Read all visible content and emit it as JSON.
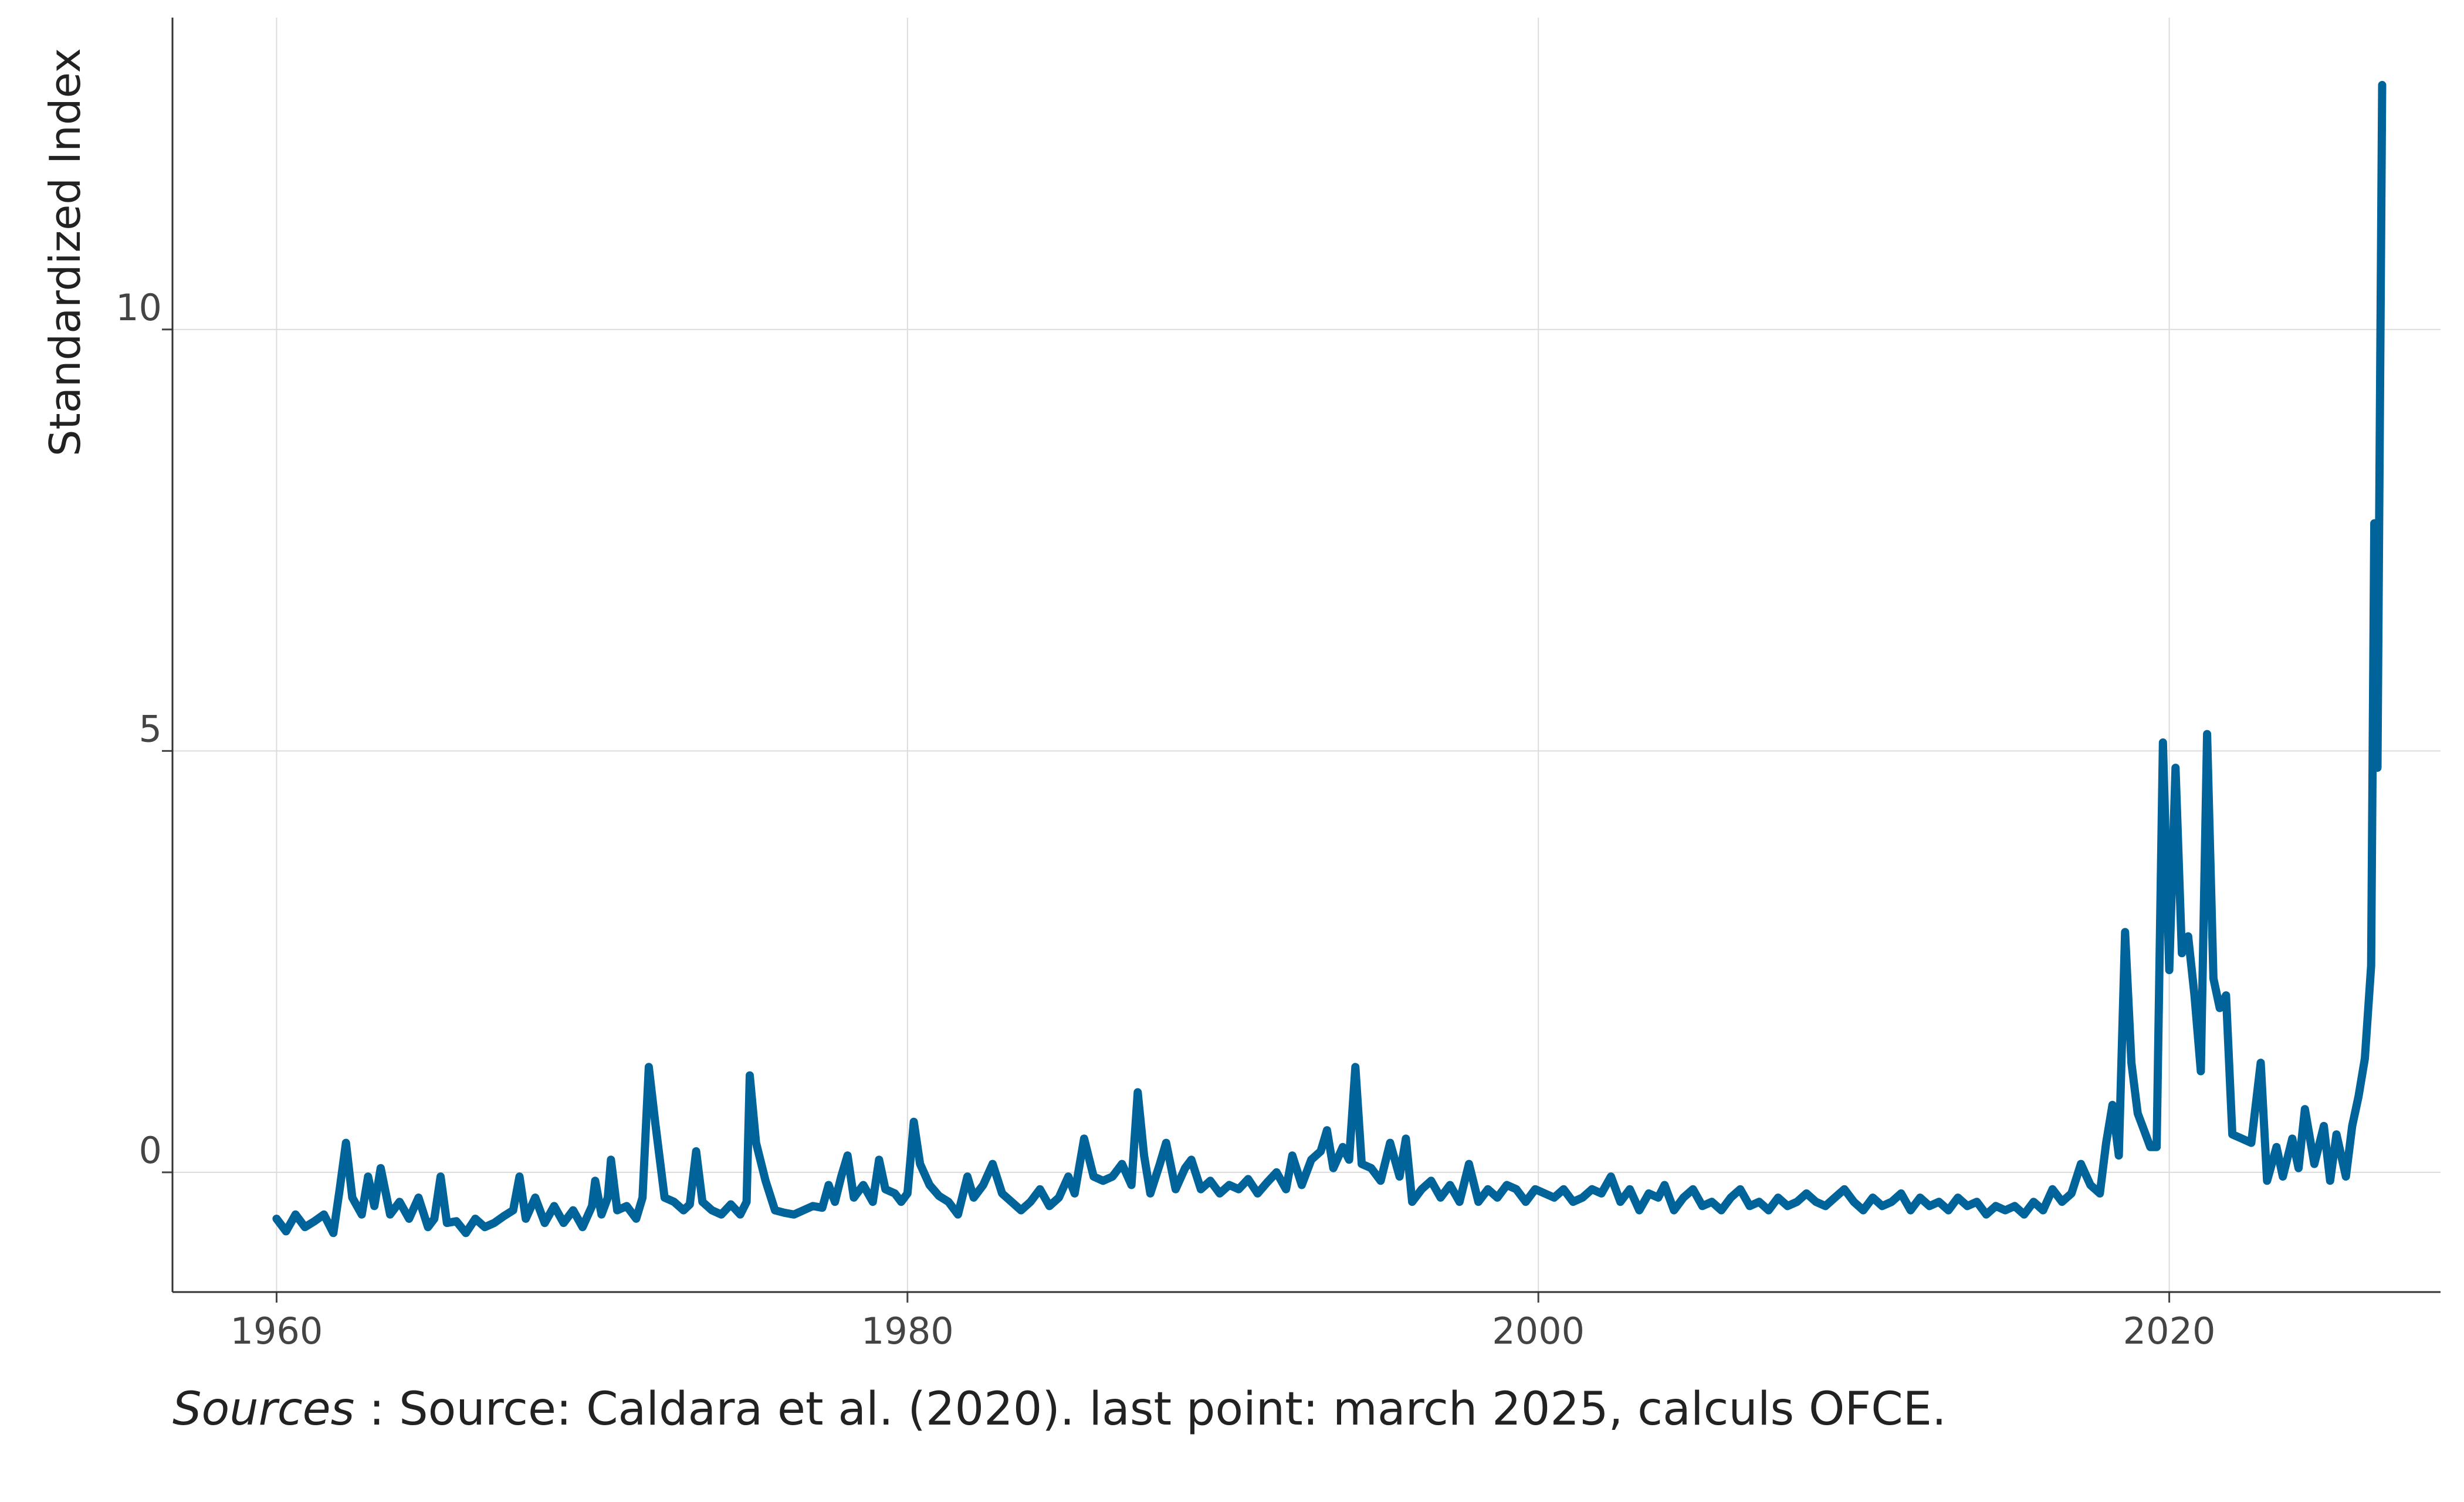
{
  "chart_data": {
    "type": "line",
    "ylabel": "Standardized Index",
    "xlabel": "",
    "x_range": [
      1956.7,
      2028.6
    ],
    "y_range": [
      -1.42,
      13.7
    ],
    "x_ticks": [
      1960,
      1980,
      2000,
      2020
    ],
    "y_ticks": [
      0,
      5,
      10
    ],
    "grid": true,
    "legend": "none",
    "line_color": "#00639a",
    "series": [
      {
        "points": [
          [
            1960.0,
            -0.55
          ],
          [
            1960.3,
            -0.7
          ],
          [
            1960.6,
            -0.5
          ],
          [
            1960.9,
            -0.65
          ],
          [
            1961.2,
            -0.58
          ],
          [
            1961.5,
            -0.5
          ],
          [
            1961.8,
            -0.72
          ],
          [
            1962.0,
            -0.2
          ],
          [
            1962.2,
            0.35
          ],
          [
            1962.4,
            -0.3
          ],
          [
            1962.7,
            -0.5
          ],
          [
            1962.9,
            -0.05
          ],
          [
            1963.1,
            -0.4
          ],
          [
            1963.3,
            0.05
          ],
          [
            1963.6,
            -0.5
          ],
          [
            1963.9,
            -0.35
          ],
          [
            1964.2,
            -0.55
          ],
          [
            1964.5,
            -0.3
          ],
          [
            1964.8,
            -0.65
          ],
          [
            1965.0,
            -0.55
          ],
          [
            1965.2,
            -0.05
          ],
          [
            1965.4,
            -0.6
          ],
          [
            1965.7,
            -0.58
          ],
          [
            1966.0,
            -0.72
          ],
          [
            1966.3,
            -0.55
          ],
          [
            1966.6,
            -0.65
          ],
          [
            1966.9,
            -0.6
          ],
          [
            1967.2,
            -0.52
          ],
          [
            1967.5,
            -0.45
          ],
          [
            1967.7,
            -0.05
          ],
          [
            1967.9,
            -0.55
          ],
          [
            1968.2,
            -0.3
          ],
          [
            1968.5,
            -0.6
          ],
          [
            1968.8,
            -0.4
          ],
          [
            1969.1,
            -0.6
          ],
          [
            1969.4,
            -0.45
          ],
          [
            1969.7,
            -0.65
          ],
          [
            1970.0,
            -0.4
          ],
          [
            1970.1,
            -0.1
          ],
          [
            1970.3,
            -0.5
          ],
          [
            1970.5,
            -0.3
          ],
          [
            1970.6,
            0.15
          ],
          [
            1970.8,
            -0.45
          ],
          [
            1971.1,
            -0.4
          ],
          [
            1971.4,
            -0.55
          ],
          [
            1971.6,
            -0.3
          ],
          [
            1971.8,
            1.25
          ],
          [
            1972.0,
            0.6
          ],
          [
            1972.3,
            -0.3
          ],
          [
            1972.6,
            -0.35
          ],
          [
            1972.9,
            -0.45
          ],
          [
            1973.1,
            -0.38
          ],
          [
            1973.3,
            0.25
          ],
          [
            1973.5,
            -0.35
          ],
          [
            1973.8,
            -0.45
          ],
          [
            1974.1,
            -0.5
          ],
          [
            1974.4,
            -0.38
          ],
          [
            1974.7,
            -0.5
          ],
          [
            1974.9,
            -0.35
          ],
          [
            1975.0,
            1.15
          ],
          [
            1975.2,
            0.35
          ],
          [
            1975.5,
            -0.1
          ],
          [
            1975.8,
            -0.45
          ],
          [
            1976.1,
            -0.48
          ],
          [
            1976.4,
            -0.5
          ],
          [
            1976.7,
            -0.45
          ],
          [
            1977.0,
            -0.4
          ],
          [
            1977.3,
            -0.42
          ],
          [
            1977.5,
            -0.15
          ],
          [
            1977.7,
            -0.35
          ],
          [
            1977.9,
            -0.05
          ],
          [
            1978.1,
            0.2
          ],
          [
            1978.3,
            -0.3
          ],
          [
            1978.6,
            -0.15
          ],
          [
            1978.9,
            -0.35
          ],
          [
            1979.1,
            0.15
          ],
          [
            1979.3,
            -0.2
          ],
          [
            1979.6,
            -0.25
          ],
          [
            1979.8,
            -0.35
          ],
          [
            1980.0,
            -0.25
          ],
          [
            1980.2,
            0.6
          ],
          [
            1980.4,
            0.1
          ],
          [
            1980.7,
            -0.15
          ],
          [
            1981.0,
            -0.28
          ],
          [
            1981.3,
            -0.35
          ],
          [
            1981.6,
            -0.5
          ],
          [
            1981.9,
            -0.05
          ],
          [
            1982.1,
            -0.3
          ],
          [
            1982.4,
            -0.15
          ],
          [
            1982.7,
            0.1
          ],
          [
            1983.0,
            -0.25
          ],
          [
            1983.3,
            -0.35
          ],
          [
            1983.6,
            -0.45
          ],
          [
            1983.9,
            -0.35
          ],
          [
            1984.2,
            -0.2
          ],
          [
            1984.5,
            -0.4
          ],
          [
            1984.8,
            -0.3
          ],
          [
            1985.1,
            -0.05
          ],
          [
            1985.3,
            -0.25
          ],
          [
            1985.6,
            0.4
          ],
          [
            1985.9,
            -0.05
          ],
          [
            1986.2,
            -0.1
          ],
          [
            1986.5,
            -0.05
          ],
          [
            1986.8,
            0.1
          ],
          [
            1987.1,
            -0.15
          ],
          [
            1987.3,
            0.95
          ],
          [
            1987.5,
            0.2
          ],
          [
            1987.7,
            -0.25
          ],
          [
            1988.0,
            0.1
          ],
          [
            1988.2,
            0.35
          ],
          [
            1988.5,
            -0.2
          ],
          [
            1988.8,
            0.05
          ],
          [
            1989.0,
            0.15
          ],
          [
            1989.3,
            -0.2
          ],
          [
            1989.6,
            -0.1
          ],
          [
            1989.9,
            -0.25
          ],
          [
            1990.2,
            -0.15
          ],
          [
            1990.5,
            -0.2
          ],
          [
            1990.8,
            -0.08
          ],
          [
            1991.1,
            -0.25
          ],
          [
            1991.4,
            -0.12
          ],
          [
            1991.7,
            0.0
          ],
          [
            1992.0,
            -0.2
          ],
          [
            1992.2,
            0.2
          ],
          [
            1992.5,
            -0.15
          ],
          [
            1992.8,
            0.15
          ],
          [
            1993.1,
            0.25
          ],
          [
            1993.3,
            0.5
          ],
          [
            1993.5,
            0.05
          ],
          [
            1993.8,
            0.3
          ],
          [
            1994.0,
            0.15
          ],
          [
            1994.2,
            1.25
          ],
          [
            1994.4,
            0.1
          ],
          [
            1994.7,
            0.05
          ],
          [
            1995.0,
            -0.1
          ],
          [
            1995.3,
            0.35
          ],
          [
            1995.6,
            -0.05
          ],
          [
            1995.8,
            0.4
          ],
          [
            1996.0,
            -0.35
          ],
          [
            1996.3,
            -0.2
          ],
          [
            1996.6,
            -0.1
          ],
          [
            1996.9,
            -0.3
          ],
          [
            1997.2,
            -0.15
          ],
          [
            1997.5,
            -0.35
          ],
          [
            1997.8,
            0.1
          ],
          [
            1998.1,
            -0.35
          ],
          [
            1998.4,
            -0.2
          ],
          [
            1998.7,
            -0.3
          ],
          [
            1999.0,
            -0.15
          ],
          [
            1999.3,
            -0.2
          ],
          [
            1999.6,
            -0.35
          ],
          [
            1999.9,
            -0.2
          ],
          [
            2000.2,
            -0.25
          ],
          [
            2000.5,
            -0.3
          ],
          [
            2000.8,
            -0.2
          ],
          [
            2001.1,
            -0.35
          ],
          [
            2001.4,
            -0.3
          ],
          [
            2001.7,
            -0.2
          ],
          [
            2002.0,
            -0.25
          ],
          [
            2002.3,
            -0.05
          ],
          [
            2002.6,
            -0.35
          ],
          [
            2002.9,
            -0.2
          ],
          [
            2003.2,
            -0.45
          ],
          [
            2003.5,
            -0.25
          ],
          [
            2003.8,
            -0.3
          ],
          [
            2004.0,
            -0.15
          ],
          [
            2004.3,
            -0.45
          ],
          [
            2004.6,
            -0.3
          ],
          [
            2004.9,
            -0.2
          ],
          [
            2005.2,
            -0.4
          ],
          [
            2005.5,
            -0.35
          ],
          [
            2005.8,
            -0.45
          ],
          [
            2006.1,
            -0.3
          ],
          [
            2006.4,
            -0.2
          ],
          [
            2006.7,
            -0.4
          ],
          [
            2007.0,
            -0.35
          ],
          [
            2007.3,
            -0.45
          ],
          [
            2007.6,
            -0.3
          ],
          [
            2007.9,
            -0.4
          ],
          [
            2008.2,
            -0.35
          ],
          [
            2008.5,
            -0.25
          ],
          [
            2008.8,
            -0.35
          ],
          [
            2009.1,
            -0.4
          ],
          [
            2009.4,
            -0.3
          ],
          [
            2009.7,
            -0.2
          ],
          [
            2010.0,
            -0.35
          ],
          [
            2010.3,
            -0.45
          ],
          [
            2010.6,
            -0.3
          ],
          [
            2010.9,
            -0.4
          ],
          [
            2011.2,
            -0.35
          ],
          [
            2011.5,
            -0.25
          ],
          [
            2011.8,
            -0.45
          ],
          [
            2012.1,
            -0.3
          ],
          [
            2012.4,
            -0.4
          ],
          [
            2012.7,
            -0.35
          ],
          [
            2013.0,
            -0.45
          ],
          [
            2013.3,
            -0.3
          ],
          [
            2013.6,
            -0.4
          ],
          [
            2013.9,
            -0.35
          ],
          [
            2014.2,
            -0.5
          ],
          [
            2014.5,
            -0.4
          ],
          [
            2014.8,
            -0.45
          ],
          [
            2015.1,
            -0.4
          ],
          [
            2015.4,
            -0.5
          ],
          [
            2015.7,
            -0.35
          ],
          [
            2016.0,
            -0.45
          ],
          [
            2016.3,
            -0.2
          ],
          [
            2016.6,
            -0.35
          ],
          [
            2016.9,
            -0.25
          ],
          [
            2017.2,
            0.1
          ],
          [
            2017.5,
            -0.15
          ],
          [
            2017.8,
            -0.25
          ],
          [
            2018.0,
            0.35
          ],
          [
            2018.2,
            0.8
          ],
          [
            2018.4,
            0.2
          ],
          [
            2018.6,
            2.85
          ],
          [
            2018.8,
            1.3
          ],
          [
            2019.0,
            0.7
          ],
          [
            2019.2,
            0.5
          ],
          [
            2019.4,
            0.3
          ],
          [
            2019.6,
            0.3
          ],
          [
            2019.8,
            5.1
          ],
          [
            2020.0,
            2.4
          ],
          [
            2020.2,
            4.8
          ],
          [
            2020.4,
            2.6
          ],
          [
            2020.6,
            2.8
          ],
          [
            2020.8,
            2.1
          ],
          [
            2021.0,
            1.2
          ],
          [
            2021.2,
            5.2
          ],
          [
            2021.4,
            2.3
          ],
          [
            2021.6,
            1.95
          ],
          [
            2021.8,
            2.1
          ],
          [
            2022.0,
            0.45
          ],
          [
            2022.3,
            0.4
          ],
          [
            2022.6,
            0.35
          ],
          [
            2022.9,
            1.3
          ],
          [
            2023.1,
            -0.1
          ],
          [
            2023.4,
            0.3
          ],
          [
            2023.6,
            -0.05
          ],
          [
            2023.9,
            0.4
          ],
          [
            2024.1,
            0.05
          ],
          [
            2024.3,
            0.75
          ],
          [
            2024.6,
            0.1
          ],
          [
            2024.9,
            0.55
          ],
          [
            2025.1,
            -0.1
          ],
          [
            2025.3,
            0.45
          ],
          [
            2025.6,
            -0.05
          ],
          [
            2025.8,
            0.55
          ],
          [
            2026.0,
            0.9
          ],
          [
            2026.2,
            1.35
          ],
          [
            2026.4,
            2.45
          ],
          [
            2026.5,
            7.7
          ],
          [
            2026.6,
            4.8
          ],
          [
            2026.75,
            12.9
          ]
        ]
      }
    ]
  },
  "caption": {
    "lead": "Sources",
    "text": " : Source: Caldara et al. (2020). last point: march 2025, calculs OFCE."
  }
}
